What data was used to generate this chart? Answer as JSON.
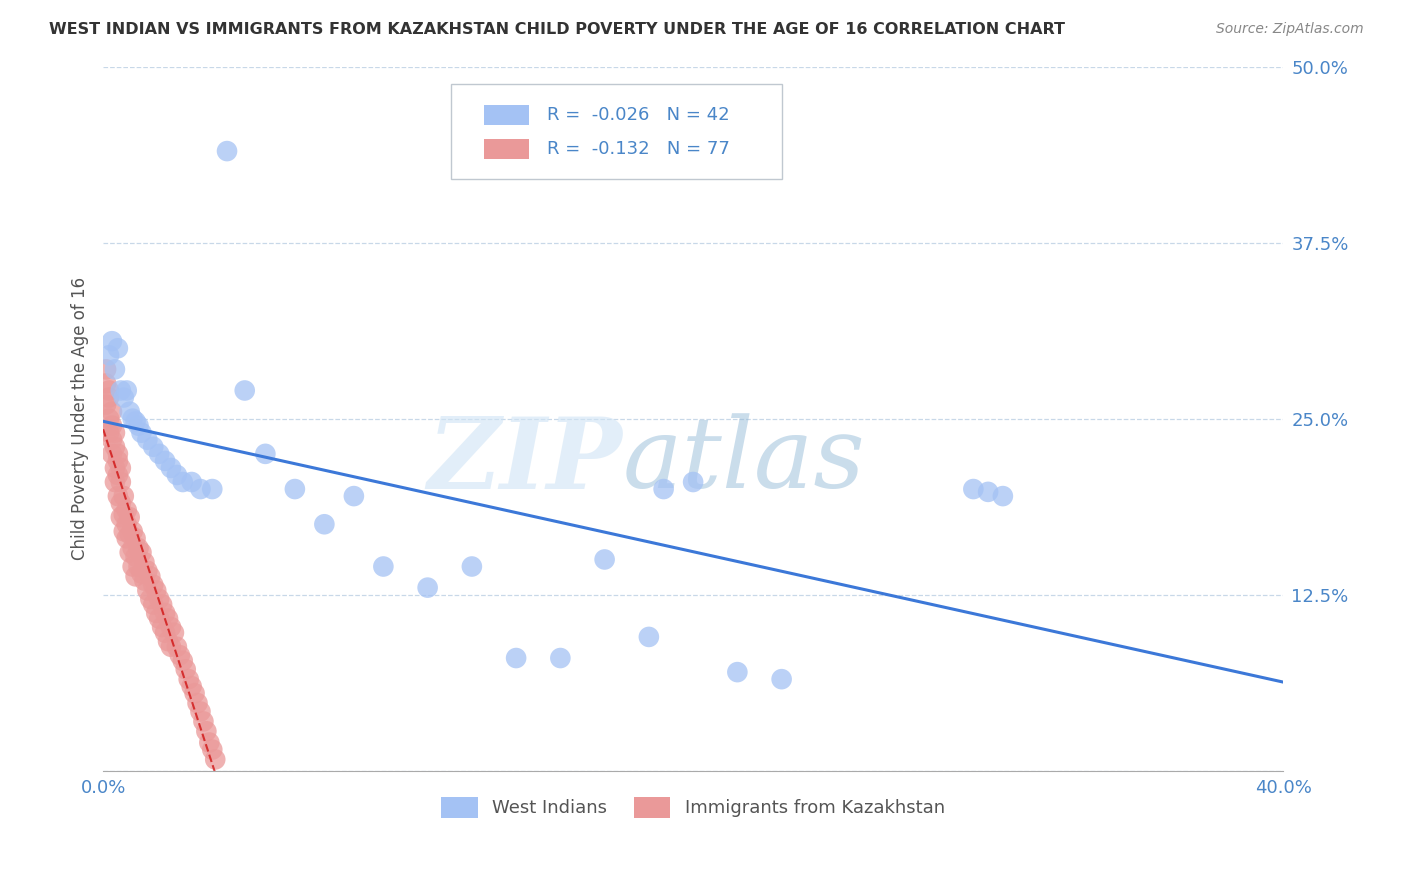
{
  "title": "WEST INDIAN VS IMMIGRANTS FROM KAZAKHSTAN CHILD POVERTY UNDER THE AGE OF 16 CORRELATION CHART",
  "source": "Source: ZipAtlas.com",
  "ylabel": "Child Poverty Under the Age of 16",
  "xlim": [
    0.0,
    0.4
  ],
  "ylim": [
    0.0,
    0.5
  ],
  "blue_color": "#a4c2f4",
  "pink_color": "#ea9999",
  "trend_blue_color": "#3c78d8",
  "trend_pink_color": "#cc0000",
  "legend_label1": "West Indians",
  "legend_label2": "Immigrants from Kazakhstan",
  "blue_R": "-0.026",
  "blue_N": "42",
  "pink_R": "-0.132",
  "pink_N": "77",
  "blue_points_x": [
    0.002,
    0.003,
    0.004,
    0.005,
    0.006,
    0.007,
    0.008,
    0.009,
    0.01,
    0.011,
    0.012,
    0.013,
    0.015,
    0.017,
    0.019,
    0.021,
    0.023,
    0.025,
    0.027,
    0.03,
    0.033,
    0.037,
    0.042,
    0.048,
    0.055,
    0.065,
    0.075,
    0.085,
    0.095,
    0.11,
    0.125,
    0.14,
    0.155,
    0.17,
    0.185,
    0.2,
    0.215,
    0.23,
    0.295,
    0.3,
    0.305,
    0.19
  ],
  "blue_points_y": [
    0.295,
    0.305,
    0.285,
    0.3,
    0.27,
    0.265,
    0.27,
    0.255,
    0.25,
    0.248,
    0.245,
    0.24,
    0.235,
    0.23,
    0.225,
    0.22,
    0.215,
    0.21,
    0.205,
    0.205,
    0.2,
    0.2,
    0.44,
    0.27,
    0.225,
    0.2,
    0.175,
    0.195,
    0.145,
    0.13,
    0.145,
    0.08,
    0.08,
    0.15,
    0.095,
    0.205,
    0.07,
    0.065,
    0.2,
    0.198,
    0.195,
    0.2
  ],
  "pink_points_x": [
    0.001,
    0.001,
    0.002,
    0.002,
    0.002,
    0.003,
    0.003,
    0.003,
    0.004,
    0.004,
    0.004,
    0.005,
    0.005,
    0.005,
    0.006,
    0.006,
    0.006,
    0.007,
    0.007,
    0.007,
    0.008,
    0.008,
    0.008,
    0.009,
    0.009,
    0.009,
    0.01,
    0.01,
    0.01,
    0.011,
    0.011,
    0.011,
    0.012,
    0.012,
    0.013,
    0.013,
    0.014,
    0.014,
    0.015,
    0.015,
    0.016,
    0.016,
    0.017,
    0.017,
    0.018,
    0.018,
    0.019,
    0.019,
    0.02,
    0.02,
    0.021,
    0.021,
    0.022,
    0.022,
    0.023,
    0.023,
    0.024,
    0.025,
    0.026,
    0.027,
    0.028,
    0.029,
    0.03,
    0.031,
    0.032,
    0.033,
    0.034,
    0.035,
    0.036,
    0.037,
    0.038,
    0.001,
    0.002,
    0.003,
    0.004,
    0.005,
    0.006
  ],
  "pink_points_y": [
    0.275,
    0.26,
    0.265,
    0.25,
    0.24,
    0.255,
    0.235,
    0.225,
    0.23,
    0.215,
    0.205,
    0.22,
    0.21,
    0.195,
    0.205,
    0.19,
    0.18,
    0.195,
    0.182,
    0.17,
    0.185,
    0.175,
    0.165,
    0.18,
    0.168,
    0.155,
    0.17,
    0.158,
    0.145,
    0.165,
    0.152,
    0.138,
    0.158,
    0.145,
    0.155,
    0.14,
    0.148,
    0.135,
    0.142,
    0.128,
    0.138,
    0.122,
    0.132,
    0.118,
    0.128,
    0.112,
    0.122,
    0.108,
    0.118,
    0.102,
    0.112,
    0.098,
    0.108,
    0.092,
    0.102,
    0.088,
    0.098,
    0.088,
    0.082,
    0.078,
    0.072,
    0.065,
    0.06,
    0.055,
    0.048,
    0.042,
    0.035,
    0.028,
    0.02,
    0.015,
    0.008,
    0.285,
    0.27,
    0.245,
    0.24,
    0.225,
    0.215
  ]
}
